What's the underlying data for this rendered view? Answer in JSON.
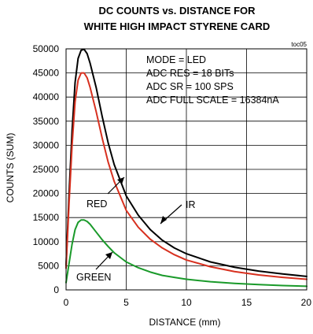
{
  "chart_data": {
    "type": "line",
    "title_lines": [
      "DC COUNTS vs. DISTANCE FOR",
      "WHITE HIGH IMPACT STYRENE CARD"
    ],
    "figure_code": "toc05",
    "xlabel": "DISTANCE (mm)",
    "ylabel": "COUNTS (SUM)",
    "xlim": [
      0,
      20
    ],
    "ylim": [
      0,
      50000
    ],
    "x_ticks": [
      0,
      5,
      10,
      15,
      20
    ],
    "y_ticks": [
      0,
      5000,
      10000,
      15000,
      20000,
      25000,
      30000,
      35000,
      40000,
      45000,
      50000
    ],
    "grid": true,
    "annotations": [
      "MODE = LED",
      "ADC RES = 18 BITs",
      "ADC SR = 100 SPS",
      "ADC FULL SCALE = 16384nA"
    ],
    "series": [
      {
        "name": "IR",
        "color": "#000000",
        "x": [
          0,
          0.25,
          0.5,
          0.75,
          1.0,
          1.25,
          1.5,
          1.75,
          2.0,
          2.5,
          3,
          3.5,
          4,
          5,
          6,
          7,
          8,
          9,
          10,
          12,
          14,
          16,
          18,
          20
        ],
        "y": [
          5000,
          20000,
          33000,
          43000,
          48000,
          49700,
          49900,
          49000,
          47000,
          42000,
          36000,
          30500,
          26000,
          19500,
          15500,
          12500,
          10300,
          8700,
          7500,
          5800,
          4700,
          3900,
          3300,
          2800
        ]
      },
      {
        "name": "RED",
        "color": "#d7301f",
        "x": [
          0,
          0.25,
          0.5,
          0.75,
          1.0,
          1.25,
          1.5,
          1.75,
          2.0,
          2.5,
          3,
          3.5,
          4,
          5,
          6,
          7,
          8,
          9,
          10,
          12,
          14,
          16,
          18,
          20
        ],
        "y": [
          4500,
          18000,
          30000,
          39000,
          43500,
          45000,
          45000,
          44000,
          42000,
          37000,
          31500,
          26500,
          22500,
          16500,
          13000,
          10500,
          8700,
          7300,
          6200,
          4800,
          3800,
          3100,
          2600,
          2200
        ]
      },
      {
        "name": "GREEN",
        "color": "#1a9a2a",
        "x": [
          0,
          0.25,
          0.5,
          0.75,
          1.0,
          1.25,
          1.5,
          1.75,
          2.0,
          2.5,
          3,
          3.5,
          4,
          5,
          6,
          7,
          8,
          9,
          10,
          12,
          14,
          16,
          18,
          20
        ],
        "y": [
          1500,
          5500,
          9500,
          12500,
          14000,
          14500,
          14500,
          14200,
          13600,
          12000,
          10400,
          9000,
          7700,
          5800,
          4600,
          3700,
          3000,
          2600,
          2200,
          1700,
          1350,
          1100,
          900,
          750
        ]
      }
    ]
  }
}
